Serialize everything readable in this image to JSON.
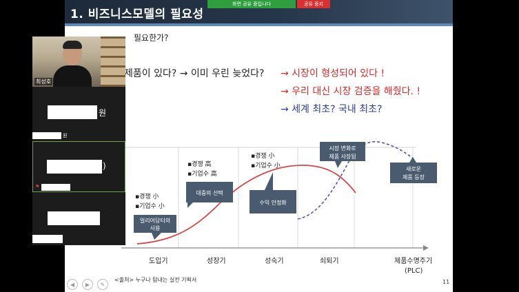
{
  "slide": {
    "title": "1. 비즈니스모델의 필요성",
    "subtitle": "필요한가?",
    "lines": {
      "q1": "제품이 있다? → 이미 우린 늦었다?",
      "r1": "→ 시장이 형성되어 있다 !",
      "r2": "→ 우리 대신 시장 검증을 해줬다. !",
      "b1": "→ 세계 최초? 국내 최초?"
    },
    "footer_source": "<출처> 누구나 탐내는 실전 기획서",
    "page_number": "11"
  },
  "share_bar": {
    "sharing_label": "화면 공유 중입니다",
    "stop_label": "공유 중지"
  },
  "participants": [
    {
      "label": "최성호"
    },
    {
      "name_suffix": "원",
      "tag_suffix": "원"
    },
    {
      "name_suffix": ")"
    },
    {
      "name_suffix": ""
    }
  ],
  "chart_data": {
    "type": "line",
    "x": [
      "도입기",
      "성장기",
      "성숙기",
      "쇠퇴기",
      "제품수명주기\n(PLC)"
    ],
    "stages": [
      "도입기",
      "성장기",
      "성숙기",
      "쇠퇴기"
    ],
    "axis_label": "제품수명주기",
    "axis_label_2": "(PLC)",
    "stage_notes": {
      "intro": [
        "▪경쟁 小",
        "▪기업수 小"
      ],
      "growth": [
        "▪경쟁 高",
        "▪기업수 高"
      ],
      "mature": [
        "▪경쟁 小",
        "▪기업수 小"
      ]
    },
    "callouts": {
      "early_adopter": [
        "얼리어답터의",
        "사용"
      ],
      "mass_choice": [
        "대중의 선택"
      ],
      "stable_revenue": [
        "수익 안정화"
      ],
      "market_change": [
        "시장 변화로",
        "제품 사장됨"
      ],
      "new_product": [
        "새로운",
        "제품 등장"
      ]
    },
    "colors": {
      "main_curve": "#d64545",
      "next_curve": "#5252b0",
      "callout": "#4a5b70"
    }
  }
}
